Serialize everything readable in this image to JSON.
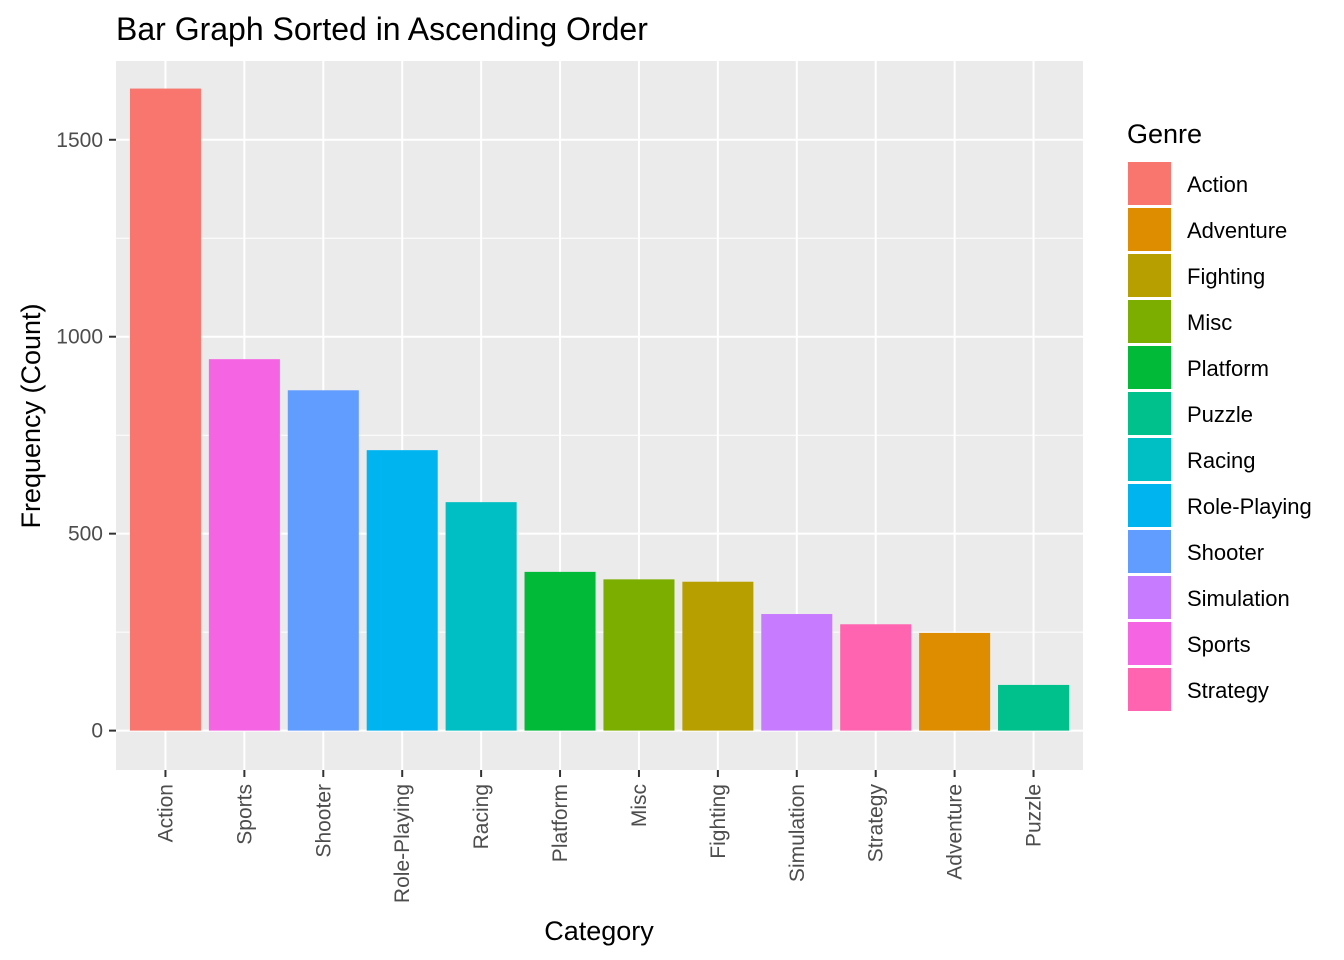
{
  "chart_data": {
    "type": "bar",
    "title": "Bar Graph Sorted in Ascending Order",
    "xlabel": "Category",
    "ylabel": "Frequency (Count)",
    "ylim": [
      -100,
      1700
    ],
    "y_ticks": [
      0,
      500,
      1000,
      1500
    ],
    "grid": true,
    "legend_position": "right",
    "categories": [
      "Action",
      "Sports",
      "Shooter",
      "Role-Playing",
      "Racing",
      "Platform",
      "Misc",
      "Fighting",
      "Simulation",
      "Strategy",
      "Adventure",
      "Puzzle"
    ],
    "values": [
      1630,
      943,
      864,
      712,
      580,
      403,
      384,
      378,
      296,
      270,
      248,
      116
    ],
    "legend": {
      "title": "Genre",
      "items": [
        {
          "label": "Action",
          "color": "#F8766D"
        },
        {
          "label": "Adventure",
          "color": "#DE8C00"
        },
        {
          "label": "Fighting",
          "color": "#B79F00"
        },
        {
          "label": "Misc",
          "color": "#7CAE00"
        },
        {
          "label": "Platform",
          "color": "#00BA38"
        },
        {
          "label": "Puzzle",
          "color": "#00C08B"
        },
        {
          "label": "Racing",
          "color": "#00BFC4"
        },
        {
          "label": "Role-Playing",
          "color": "#00B4F0"
        },
        {
          "label": "Shooter",
          "color": "#619CFF"
        },
        {
          "label": "Simulation",
          "color": "#C77CFF"
        },
        {
          "label": "Sports",
          "color": "#F564E3"
        },
        {
          "label": "Strategy",
          "color": "#FF64B0"
        }
      ]
    },
    "panel_background": "#EBEBEB",
    "grid_color": "#FFFFFF"
  }
}
